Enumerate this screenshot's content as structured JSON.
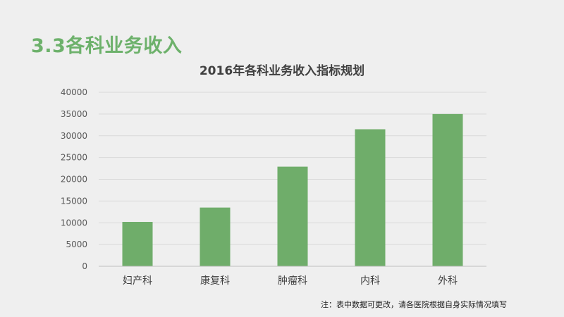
{
  "section_title": "3.3各科业务收入",
  "footnote": "注：表中数据可更改，请各医院根据自身实际情况填写",
  "colors": {
    "bar": "#6fad6a",
    "grid": "#d9d9d9",
    "axis_text": "#595959",
    "accent": "#6db16b"
  },
  "chart_data": {
    "type": "bar",
    "title": "2016年各科业务收入指标规划",
    "xlabel": "",
    "ylabel": "",
    "categories": [
      "妇产科",
      "康复科",
      "肿瘤科",
      "内科",
      "外科"
    ],
    "values": [
      10200,
      13500,
      22900,
      31500,
      35000
    ],
    "ylim": [
      0,
      40000
    ],
    "yticks": [
      "0",
      "5000",
      "10000",
      "15000",
      "20000",
      "25000",
      "30000",
      "35000",
      "40000"
    ],
    "grid": true
  }
}
